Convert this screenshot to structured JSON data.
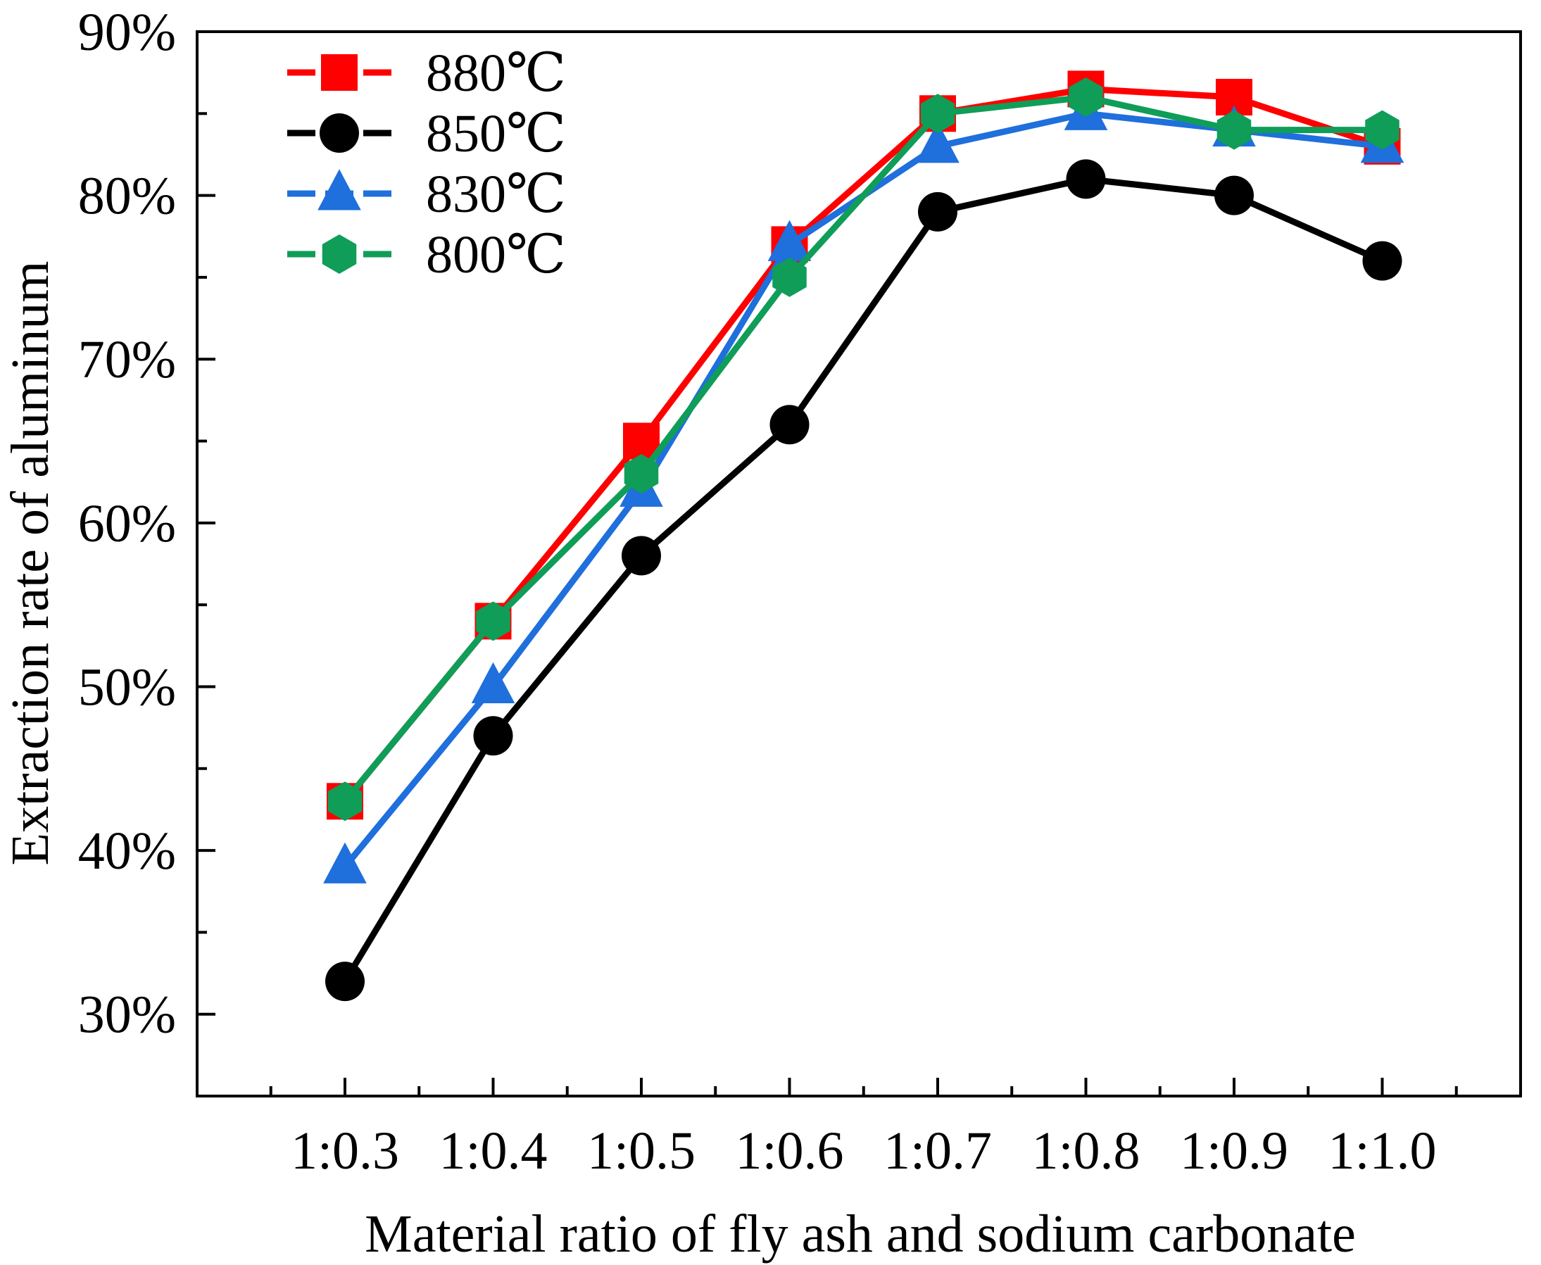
{
  "chart_data": {
    "type": "line",
    "title": "",
    "xlabel": "Material ratio of fly ash and sodium carbonate",
    "ylabel": "Extraction rate of aluminum",
    "categories": [
      "1:0.3",
      "1:0.4",
      "1:0.5",
      "1:0.6",
      "1:0.7",
      "1:0.8",
      "1:0.9",
      "1:1.0"
    ],
    "ylim": [
      25,
      90
    ],
    "yticks": [
      30,
      40,
      50,
      60,
      70,
      80,
      90
    ],
    "ytick_labels": [
      "30%",
      "40%",
      "50%",
      "60%",
      "70%",
      "80%",
      "90%"
    ],
    "grid": false,
    "legend_position": "top-left",
    "series": [
      {
        "name": "880℃",
        "color": "#ff0000",
        "marker": "square",
        "values": [
          43,
          54,
          65,
          77,
          85,
          86.5,
          86,
          83
        ]
      },
      {
        "name": "850℃",
        "color": "#000000",
        "marker": "circle",
        "values": [
          32,
          47,
          58,
          66,
          79,
          81,
          80,
          76
        ]
      },
      {
        "name": "830℃",
        "color": "#1f6fdc",
        "marker": "triangle",
        "values": [
          39,
          50,
          62,
          77,
          83,
          85,
          84,
          83
        ]
      },
      {
        "name": "800℃",
        "color": "#0f9d58",
        "marker": "hexagon",
        "values": [
          43,
          54,
          63,
          75,
          85,
          86,
          84,
          84
        ]
      }
    ]
  }
}
